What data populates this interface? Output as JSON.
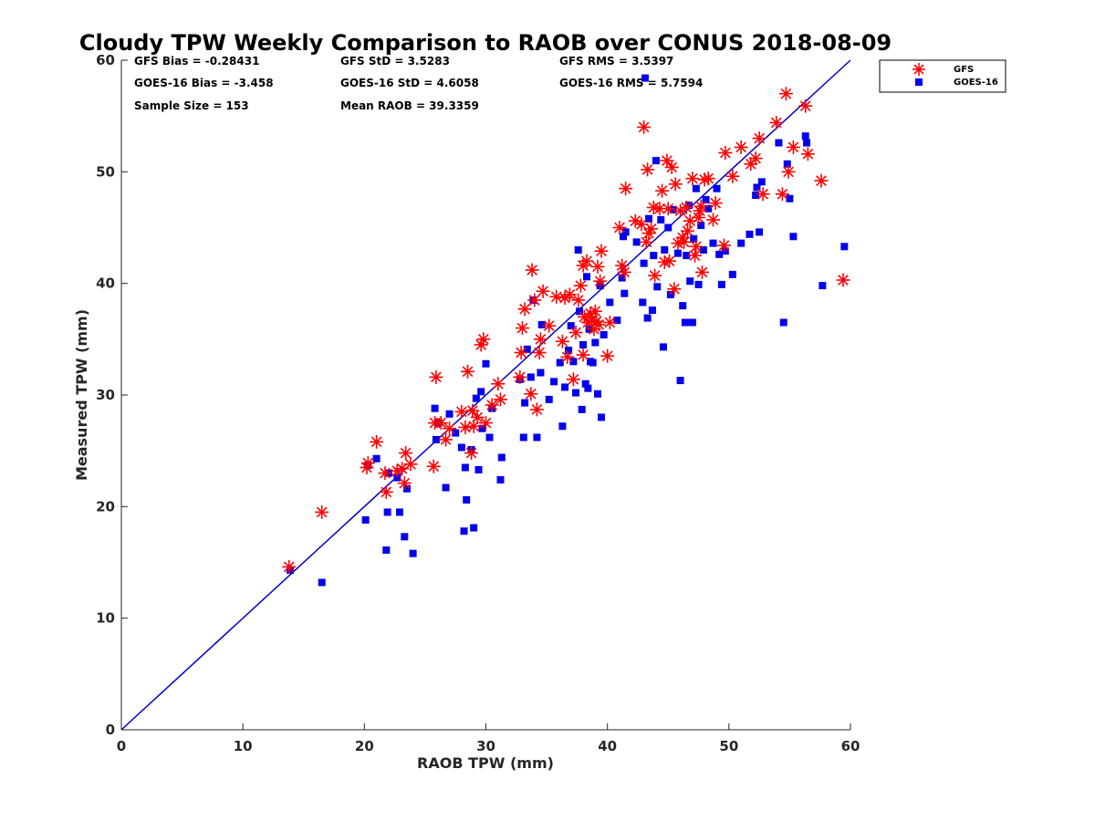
{
  "colors": {
    "gfs": "#ff0000",
    "goes": "#0000ee",
    "line": "#0000cc",
    "axis": "#262626"
  },
  "stats": {
    "gfs_bias": "GFS Bias = -0.28431",
    "gfs_std": "GFS StD = 3.5283",
    "gfs_rms": "GFS RMS = 3.5397",
    "goes_bias": "GOES-16 Bias = -3.458",
    "goes_std": "GOES-16 StD = 4.6058",
    "goes_rms": "GOES-16 RMS = 5.7594",
    "sample_size": "Sample Size = 153",
    "mean_raob": "Mean RAOB = 39.3359"
  },
  "chart_data": {
    "type": "scatter",
    "title": "Cloudy TPW Weekly Comparison to RAOB over CONUS 2018-08-09",
    "xlabel": "RAOB TPW (mm)",
    "ylabel": "Measured TPW (mm)",
    "xlim": [
      0,
      60
    ],
    "ylim": [
      0,
      60
    ],
    "xticks": [
      "0",
      "10",
      "20",
      "30",
      "40",
      "50",
      "60"
    ],
    "yticks": [
      "0",
      "10",
      "20",
      "30",
      "40",
      "50",
      "60"
    ],
    "grid": false,
    "legend_position": "outside top-right",
    "reference_line": {
      "x": [
        0,
        60
      ],
      "y": [
        0,
        60
      ]
    },
    "series": [
      {
        "name": "GFS",
        "marker": "asterisk",
        "points": [
          [
            13.8,
            14.6
          ],
          [
            16.5,
            19.5
          ],
          [
            20.2,
            23.5
          ],
          [
            20.3,
            23.9
          ],
          [
            21,
            25.8
          ],
          [
            21.7,
            23
          ],
          [
            21.8,
            21.3
          ],
          [
            22.7,
            23.2
          ],
          [
            23.1,
            23.4
          ],
          [
            23.3,
            22.1
          ],
          [
            23.4,
            24.8
          ],
          [
            23.8,
            23.8
          ],
          [
            25.7,
            23.6
          ],
          [
            25.8,
            27.5
          ],
          [
            25.9,
            31.6
          ],
          [
            26.3,
            27.5
          ],
          [
            26.7,
            26
          ],
          [
            27,
            27
          ],
          [
            28,
            28.5
          ],
          [
            28.3,
            27.1
          ],
          [
            28.5,
            32.1
          ],
          [
            28.8,
            24.8
          ],
          [
            28.9,
            28.6
          ],
          [
            29,
            27.2
          ],
          [
            29.3,
            28
          ],
          [
            29.6,
            34.5
          ],
          [
            29.8,
            35
          ],
          [
            30,
            27.5
          ],
          [
            30.5,
            29.1
          ],
          [
            31,
            31
          ],
          [
            31.2,
            29.6
          ],
          [
            32.8,
            31.6
          ],
          [
            32.9,
            33.8
          ],
          [
            33,
            36
          ],
          [
            33.2,
            37.7
          ],
          [
            33.7,
            30.1
          ],
          [
            33.8,
            41.2
          ],
          [
            34,
            38.5
          ],
          [
            34.2,
            28.7
          ],
          [
            34.4,
            33.8
          ],
          [
            34.5,
            35
          ],
          [
            34.7,
            39.3
          ],
          [
            35.2,
            36.2
          ],
          [
            35.8,
            38.8
          ],
          [
            36.3,
            34.8
          ],
          [
            36.5,
            38.7
          ],
          [
            36.7,
            33.4
          ],
          [
            36.9,
            39
          ],
          [
            37.2,
            31.4
          ],
          [
            37.4,
            35.6
          ],
          [
            37.6,
            38.5
          ],
          [
            37.8,
            39.8
          ],
          [
            38,
            41.6
          ],
          [
            38,
            33.6
          ],
          [
            38.1,
            37
          ],
          [
            38.3,
            42
          ],
          [
            38.4,
            36.5
          ],
          [
            38.6,
            37.3
          ],
          [
            38.7,
            36.7
          ],
          [
            38.9,
            35.9
          ],
          [
            39,
            37.5
          ],
          [
            39.1,
            36.6
          ],
          [
            39.2,
            41.5
          ],
          [
            39.3,
            36.3
          ],
          [
            39.4,
            40.2
          ],
          [
            39.5,
            42.9
          ],
          [
            40,
            33.5
          ],
          [
            40.2,
            36.5
          ],
          [
            41,
            45
          ],
          [
            41.2,
            41.6
          ],
          [
            41.4,
            41
          ],
          [
            41.5,
            48.5
          ],
          [
            42.3,
            45.6
          ],
          [
            42.8,
            45.3
          ],
          [
            43,
            54
          ],
          [
            43.2,
            43.7
          ],
          [
            43.3,
            50.2
          ],
          [
            43.4,
            44.5
          ],
          [
            43.6,
            44.9
          ],
          [
            43.8,
            46.8
          ],
          [
            43.9,
            40.7
          ],
          [
            44.3,
            46.7
          ],
          [
            44.5,
            48.3
          ],
          [
            44.7,
            41.9
          ],
          [
            44.9,
            51
          ],
          [
            45,
            46.7
          ],
          [
            45.1,
            42
          ],
          [
            45.3,
            50.4
          ],
          [
            45.5,
            39.5
          ],
          [
            45.6,
            48.9
          ],
          [
            45.8,
            43.6
          ],
          [
            46,
            46.5
          ],
          [
            46.2,
            44.1
          ],
          [
            46.3,
            43.7
          ],
          [
            46.5,
            46.8
          ],
          [
            46.6,
            44.7
          ],
          [
            46.8,
            45.6
          ],
          [
            47,
            49.4
          ],
          [
            47.2,
            42.5
          ],
          [
            47.3,
            43.3
          ],
          [
            47.5,
            45.9
          ],
          [
            47.6,
            46.5
          ],
          [
            47.7,
            46.9
          ],
          [
            47.8,
            41
          ],
          [
            48,
            49.3
          ],
          [
            48.3,
            49.4
          ],
          [
            48.7,
            45.7
          ],
          [
            48.9,
            47.2
          ],
          [
            49.6,
            43.4
          ],
          [
            49.7,
            51.7
          ],
          [
            50.3,
            49.6
          ],
          [
            51,
            52.2
          ],
          [
            51.8,
            50.7
          ],
          [
            52.2,
            51.2
          ],
          [
            52.5,
            53
          ],
          [
            52.8,
            48
          ],
          [
            53.9,
            54.4
          ],
          [
            54.4,
            48
          ],
          [
            54.7,
            57
          ],
          [
            54.9,
            50
          ],
          [
            55.3,
            52.2
          ],
          [
            56.3,
            55.9
          ],
          [
            56.5,
            51.6
          ],
          [
            57.6,
            49.2
          ],
          [
            59.4,
            40.3
          ]
        ]
      },
      {
        "name": "GOES-16",
        "marker": "square",
        "points": [
          [
            13.9,
            14.3
          ],
          [
            16.5,
            13.2
          ],
          [
            20.1,
            18.8
          ],
          [
            20.3,
            23.7
          ],
          [
            21,
            24.3
          ],
          [
            21.8,
            16.1
          ],
          [
            21.9,
            19.5
          ],
          [
            22,
            23
          ],
          [
            22.7,
            22.6
          ],
          [
            22.9,
            19.5
          ],
          [
            23.3,
            17.3
          ],
          [
            23.5,
            21.6
          ],
          [
            24,
            15.8
          ],
          [
            25.8,
            28.8
          ],
          [
            25.9,
            26
          ],
          [
            26.1,
            27.5
          ],
          [
            26.7,
            21.7
          ],
          [
            27,
            28.3
          ],
          [
            27.5,
            26.6
          ],
          [
            28,
            25.3
          ],
          [
            28.2,
            17.8
          ],
          [
            28.3,
            23.5
          ],
          [
            28.4,
            20.6
          ],
          [
            28.8,
            25.1
          ],
          [
            29,
            18.1
          ],
          [
            29.2,
            29.7
          ],
          [
            29.4,
            23.3
          ],
          [
            29.6,
            30.3
          ],
          [
            29.7,
            27
          ],
          [
            30,
            32.8
          ],
          [
            30.3,
            26.2
          ],
          [
            30.5,
            28.8
          ],
          [
            31.2,
            22.4
          ],
          [
            31.3,
            24.4
          ],
          [
            32.8,
            31.4
          ],
          [
            33.1,
            26.2
          ],
          [
            33.2,
            29.3
          ],
          [
            33.4,
            34.1
          ],
          [
            33.7,
            31.6
          ],
          [
            33.9,
            38.5
          ],
          [
            34.2,
            26.2
          ],
          [
            34.5,
            32
          ],
          [
            34.6,
            36.3
          ],
          [
            35.2,
            29.6
          ],
          [
            35.6,
            31.2
          ],
          [
            36.1,
            32.9
          ],
          [
            36.3,
            27.2
          ],
          [
            36.5,
            30.7
          ],
          [
            36.8,
            34
          ],
          [
            37,
            36.2
          ],
          [
            37.2,
            33
          ],
          [
            37.4,
            30.2
          ],
          [
            37.6,
            43
          ],
          [
            37.7,
            37.5
          ],
          [
            37.9,
            28.7
          ],
          [
            38,
            34.5
          ],
          [
            38.2,
            31
          ],
          [
            38.3,
            40.6
          ],
          [
            38.4,
            30.6
          ],
          [
            38.5,
            35.9
          ],
          [
            38.6,
            33
          ],
          [
            38.8,
            32.9
          ],
          [
            39,
            34.7
          ],
          [
            39.2,
            30.1
          ],
          [
            39.4,
            39.8
          ],
          [
            39.5,
            28
          ],
          [
            39.7,
            35.4
          ],
          [
            40.2,
            38.3
          ],
          [
            40.8,
            36.7
          ],
          [
            41.2,
            40.5
          ],
          [
            41.3,
            44.2
          ],
          [
            41.4,
            39.1
          ],
          [
            41.5,
            44.6
          ],
          [
            42.4,
            43.7
          ],
          [
            42.9,
            38.3
          ],
          [
            43,
            41.8
          ],
          [
            43.1,
            58.4
          ],
          [
            43.3,
            36.9
          ],
          [
            43.4,
            45.8
          ],
          [
            43.7,
            37.6
          ],
          [
            43.8,
            42.5
          ],
          [
            44,
            51
          ],
          [
            44.1,
            39.7
          ],
          [
            44.4,
            45.7
          ],
          [
            44.6,
            34.3
          ],
          [
            44.7,
            43
          ],
          [
            45,
            45
          ],
          [
            45.2,
            39
          ],
          [
            45.4,
            46.6
          ],
          [
            45.8,
            42.7
          ],
          [
            46,
            31.3
          ],
          [
            46.2,
            38
          ],
          [
            46.4,
            36.5
          ],
          [
            46.5,
            42.5
          ],
          [
            46.7,
            47
          ],
          [
            46.8,
            40.2
          ],
          [
            47,
            36.5
          ],
          [
            47.1,
            44
          ],
          [
            47.3,
            48.5
          ],
          [
            47.5,
            39.9
          ],
          [
            47.7,
            45.2
          ],
          [
            47.9,
            43
          ],
          [
            48.1,
            47.5
          ],
          [
            48.3,
            46.7
          ],
          [
            48.7,
            43.6
          ],
          [
            49,
            48.5
          ],
          [
            49.2,
            42.6
          ],
          [
            49.4,
            39.9
          ],
          [
            49.7,
            42.9
          ],
          [
            50.3,
            40.8
          ],
          [
            51,
            43.6
          ],
          [
            51.7,
            44.4
          ],
          [
            52.2,
            47.9
          ],
          [
            52.3,
            48.6
          ],
          [
            52.5,
            44.6
          ],
          [
            52.7,
            49.1
          ],
          [
            54.1,
            52.6
          ],
          [
            54.5,
            36.5
          ],
          [
            54.8,
            50.7
          ],
          [
            55,
            47.6
          ],
          [
            55.3,
            44.2
          ],
          [
            56.3,
            53.2
          ],
          [
            56.4,
            52.6
          ],
          [
            57.7,
            39.8
          ],
          [
            59.5,
            43.3
          ]
        ]
      }
    ]
  }
}
